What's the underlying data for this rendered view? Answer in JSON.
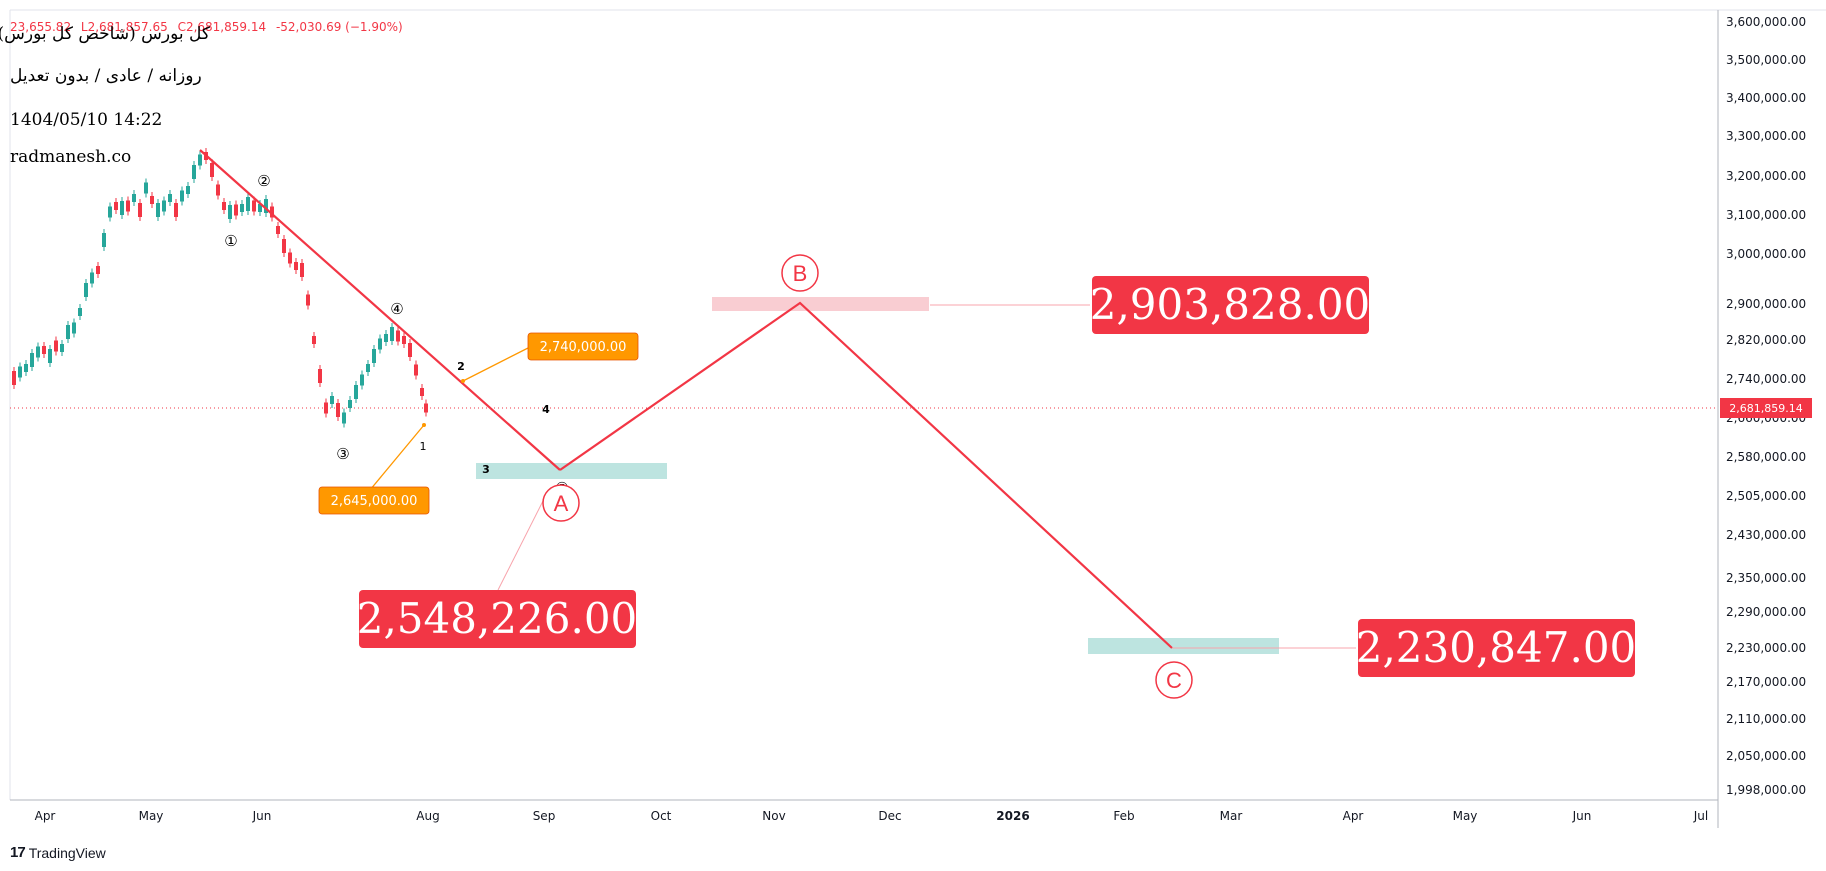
{
  "header": {
    "ohlc_partial": "23,655.82",
    "low": "L2,681,857.65",
    "close": "C2,681,859.14",
    "change": "-52,030.69 (−1.90%)"
  },
  "info": {
    "title": "کل بورس (شاخص کل بورس)",
    "subtitle": "روزانه / عادی / بدون تعدیل",
    "datetime": "1404/05/10 14:22",
    "website": "radmanesh.co"
  },
  "footer": {
    "brand": "TradingView"
  },
  "colors": {
    "up": "#26a69a",
    "down": "#f23645",
    "accent": "#f23645",
    "orange": "#ff9800",
    "zone_green": "#b2dfdb",
    "zone_red": "#f8c8cd"
  },
  "chart_data": {
    "type": "candlestick",
    "current_price_label": "2,681,859.14",
    "y_tick_labels": [
      "3,600,000.00",
      "3,500,000.00",
      "3,400,000.00",
      "3,300,000.00",
      "3,200,000.00",
      "3,100,000.00",
      "3,000,000.00",
      "2,900,000.00",
      "2,820,000.00",
      "2,740,000.00",
      "2,660,000.00",
      "2,580,000.00",
      "2,505,000.00",
      "2,430,000.00",
      "2,350,000.00",
      "2,290,000.00",
      "2,230,000.00",
      "2,170,000.00",
      "2,110,000.00",
      "2,050,000.00",
      "1,998,000.00"
    ],
    "x_tick_labels": [
      "Apr",
      "May",
      "Jun",
      "Aug",
      "Sep",
      "Oct",
      "Nov",
      "Dec",
      "2026",
      "Feb",
      "Mar",
      "Apr",
      "May",
      "Jun",
      "Jul"
    ],
    "candles_trend": [
      {
        "month": "Apr",
        "approx": 2740000
      },
      {
        "month": "May",
        "approx": 3150000
      },
      {
        "month": "late May",
        "approx": 3260000
      },
      {
        "month": "Jun",
        "approx": 3080000
      },
      {
        "month": "early Jul",
        "approx": 2690000
      },
      {
        "month": "late Jul",
        "approx": 2850000
      },
      {
        "month": "Aug",
        "approx": 2681859
      }
    ],
    "trendline": {
      "from": "3,260,000 (late May)",
      "to": "2,548,226 (Sep)"
    },
    "abc_projection": [
      {
        "label": "A",
        "value": "2,548,226.00"
      },
      {
        "label": "B",
        "value": "2,903,828.00"
      },
      {
        "label": "C",
        "value": "2,230,847.00"
      }
    ],
    "wave_labels_circled": [
      "①",
      "②",
      "③",
      "④",
      "⑤"
    ],
    "wave_labels_small": [
      "1",
      "2",
      "3",
      "4"
    ],
    "callouts": [
      "2,740,000.00",
      "2,645,000.00"
    ]
  }
}
